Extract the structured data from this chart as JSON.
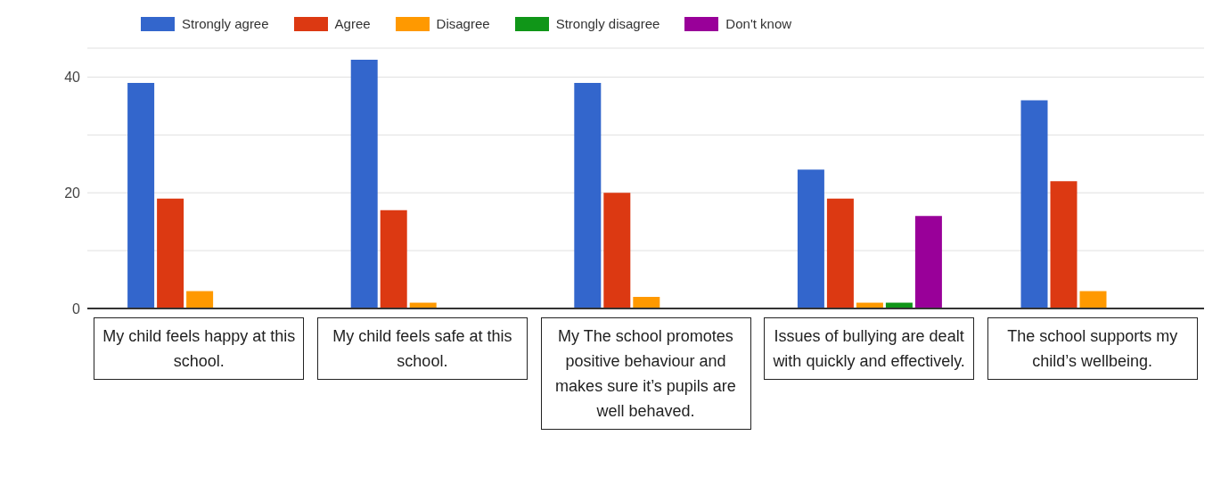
{
  "chart_data": {
    "type": "bar",
    "categories": [
      "My child feels happy at this school.",
      "My child feels safe at this school.",
      "My The school promotes positive behaviour and makes sure it’s pupils are well behaved.",
      "Issues of bullying are dealt with quickly and effectively.",
      "The school supports my child’s wellbeing."
    ],
    "series": [
      {
        "name": "Strongly agree",
        "color": "#3366cc",
        "values": [
          39,
          43,
          39,
          24,
          36
        ]
      },
      {
        "name": "Agree",
        "color": "#dc3912",
        "values": [
          19,
          17,
          20,
          19,
          22
        ]
      },
      {
        "name": "Disagree",
        "color": "#ff9900",
        "values": [
          3,
          1,
          2,
          1,
          3
        ]
      },
      {
        "name": "Strongly disagree",
        "color": "#109618",
        "values": [
          0,
          0,
          0,
          1,
          0
        ]
      },
      {
        "name": "Don't know",
        "color": "#990099",
        "values": [
          0,
          0,
          0,
          16,
          0
        ]
      }
    ],
    "ylim": [
      0,
      45
    ],
    "yticks": [
      0,
      {
        "value": 10,
        "label": null
      },
      20,
      {
        "value": 30,
        "label": null
      },
      40
    ],
    "grid": "y",
    "legend": "top left"
  }
}
